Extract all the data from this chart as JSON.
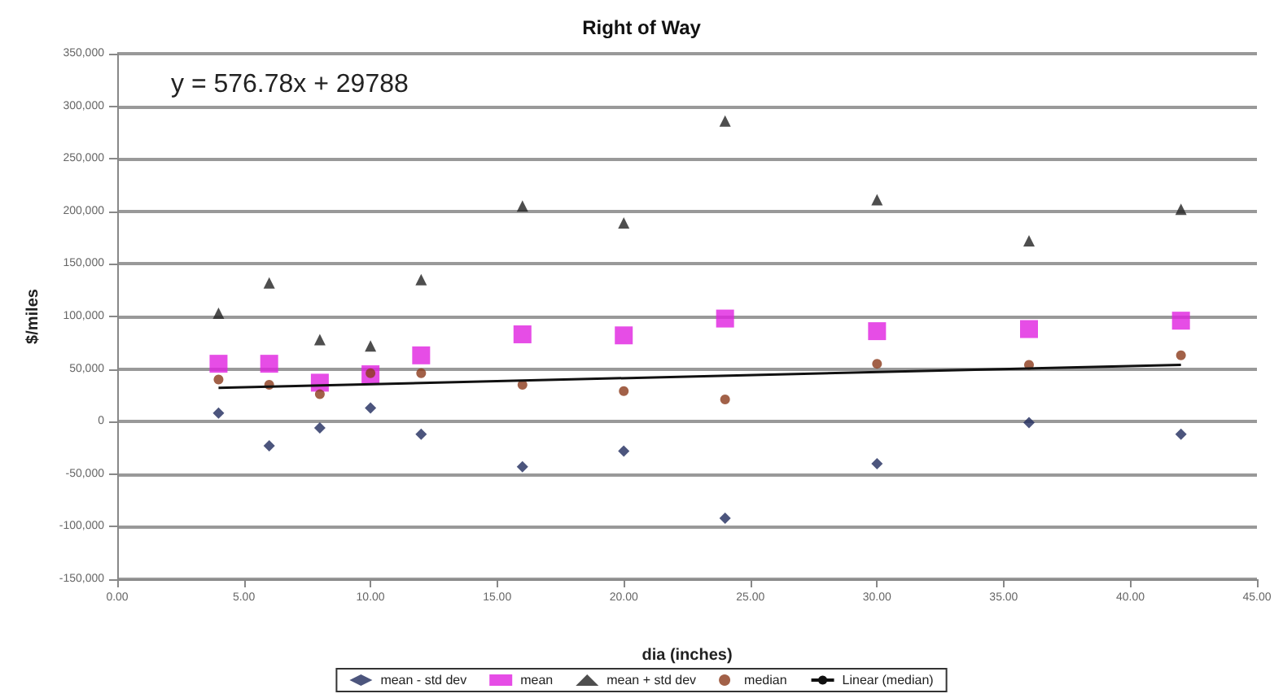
{
  "chart_data": {
    "type": "scatter",
    "title": "Right of Way",
    "xlabel": "dia (inches)",
    "ylabel": "$/miles",
    "annotations": [
      "y = 576.78x + 29788"
    ],
    "x": [
      4,
      6,
      8,
      10,
      12,
      16,
      20,
      24,
      30,
      36,
      42
    ],
    "series": [
      {
        "name": "mean - std dev",
        "color": "#1f2a5c",
        "marker": "diamond",
        "values": [
          8000,
          -23000,
          -6000,
          13000,
          -12000,
          -43000,
          -28000,
          -92000,
          -40000,
          -1000,
          -12000
        ]
      },
      {
        "name": "mean",
        "color": "#e020e0",
        "marker": "square",
        "values": [
          55000,
          55000,
          37000,
          45000,
          63000,
          83000,
          82000,
          98000,
          86000,
          88000,
          96000
        ]
      },
      {
        "name": "mean + std dev",
        "color": "#222222",
        "marker": "triangle",
        "values": [
          103000,
          132000,
          78000,
          72000,
          135000,
          205000,
          189000,
          286000,
          211000,
          172000,
          202000
        ]
      },
      {
        "name": "median",
        "color": "#8b3a1a",
        "marker": "circle",
        "values": [
          40000,
          35000,
          26000,
          46000,
          46000,
          35000,
          29000,
          21000,
          55000,
          54000,
          63000
        ]
      },
      {
        "name": "Linear (median)",
        "type": "line",
        "color": "#111111",
        "marker": "none",
        "x": [
          4,
          42
        ],
        "values": [
          32100,
          54000
        ]
      }
    ],
    "xlim": [
      0,
      45
    ],
    "xticks": [
      {
        "value": 0,
        "label": "0.00"
      },
      {
        "value": 5,
        "label": "5.00"
      },
      {
        "value": 10,
        "label": "10.00"
      },
      {
        "value": 15,
        "label": "15.00"
      },
      {
        "value": 20,
        "label": "20.00"
      },
      {
        "value": 25,
        "label": "25.00"
      },
      {
        "value": 30,
        "label": "30.00"
      },
      {
        "value": 35,
        "label": "35.00"
      },
      {
        "value": 40,
        "label": "40.00"
      },
      {
        "value": 45,
        "label": "45.00"
      }
    ],
    "ylim": [
      -150000,
      350000
    ],
    "yticks": [
      {
        "value": -150000,
        "label": "-150,000"
      },
      {
        "value": -100000,
        "label": "-100,000"
      },
      {
        "value": -50000,
        "label": "-50,000"
      },
      {
        "value": 0,
        "label": "0"
      },
      {
        "value": 50000,
        "label": "50,000"
      },
      {
        "value": 100000,
        "label": "100,000"
      },
      {
        "value": 150000,
        "label": "150,000"
      },
      {
        "value": 200000,
        "label": "200,000"
      },
      {
        "value": 250000,
        "label": "250,000"
      },
      {
        "value": 300000,
        "label": "300,000"
      },
      {
        "value": 350000,
        "label": "350,000"
      }
    ],
    "grid": "y",
    "legend": "bottom"
  }
}
